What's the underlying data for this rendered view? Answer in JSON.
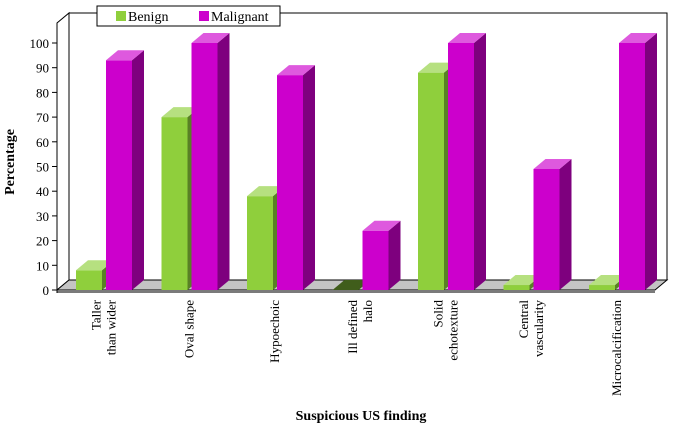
{
  "chart_data": {
    "type": "bar",
    "categories": [
      [
        "Taller",
        "than wider"
      ],
      [
        "Oval shape"
      ],
      [
        "Hypoechoic"
      ],
      [
        "Ill defined",
        "halo"
      ],
      [
        "Solid",
        "echotexture"
      ],
      [
        "Central",
        "vascularity"
      ],
      [
        "Microcalcification"
      ]
    ],
    "series": [
      {
        "name": "Benign",
        "values": [
          8,
          70,
          38,
          0,
          88,
          2,
          2
        ],
        "color": "#8fcf3c"
      },
      {
        "name": "Malignant",
        "values": [
          93,
          100,
          87,
          24,
          100,
          49,
          100
        ],
        "color": "#cc00cc"
      }
    ],
    "title": "",
    "xlabel": "Suspicious US finding",
    "ylabel": "Percentage",
    "ylim": [
      0,
      100
    ],
    "yticks": [
      0,
      10,
      20,
      30,
      40,
      50,
      60,
      70,
      80,
      90,
      100
    ],
    "grid": false,
    "legend_position": "top-left",
    "chart_style": "3d-bar"
  }
}
